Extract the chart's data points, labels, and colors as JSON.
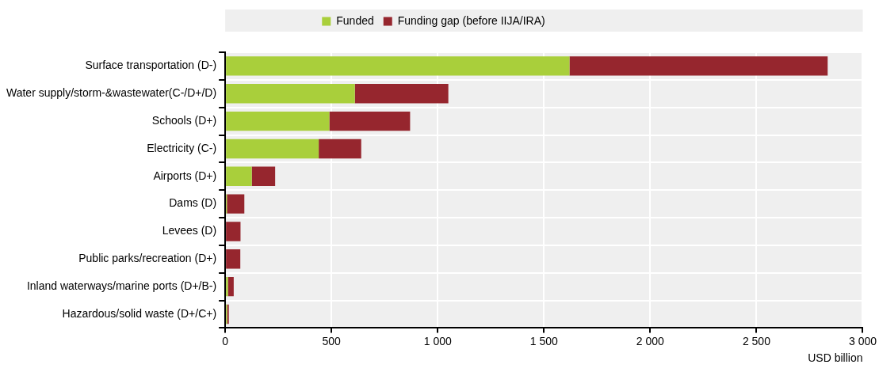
{
  "chart_data": {
    "type": "bar",
    "orientation": "horizontal",
    "stacked": true,
    "categories": [
      "Surface transportation (D-)",
      "Water supply/storm-&wastewater(C-/D+/D)",
      "Schools (D+)",
      "Electricity (C-)",
      "Airports (D+)",
      "Dams (D)",
      "Levees (D)",
      "Public parks/recreation (D+)",
      "Inland waterways/marine ports (D+/B-)",
      "Hazardous/solid waste (D+/C+)"
    ],
    "series": [
      {
        "name": "Funded",
        "color": "#a9cf3b",
        "values": [
          1620,
          610,
          490,
          440,
          125,
          8,
          null,
          null,
          13,
          9
        ]
      },
      {
        "name": "Funding gap (before IIJA/IRA)",
        "color": "#96262e",
        "values": [
          1215,
          440,
          380,
          200,
          110,
          82,
          72,
          71,
          27,
          8
        ]
      }
    ],
    "xlim": [
      0,
      3000
    ],
    "xticks": [
      0,
      500,
      {
        "value": 1000,
        "label": "1 000"
      },
      {
        "value": 1500,
        "label": "1 500"
      },
      {
        "value": 2000,
        "label": "2 000"
      },
      {
        "value": 2500,
        "label": "2 500"
      },
      {
        "value": 3000,
        "label": "3 000"
      }
    ],
    "xlabel": "USD billion",
    "grid": true,
    "legend": "top"
  }
}
